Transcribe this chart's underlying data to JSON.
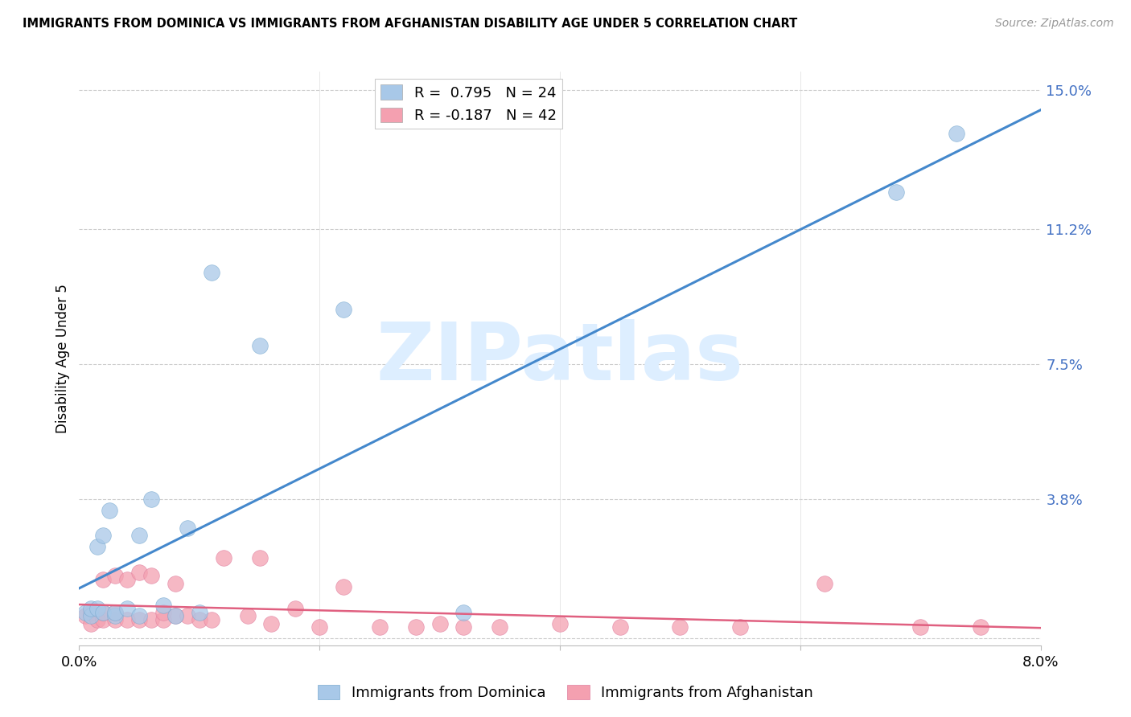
{
  "title": "IMMIGRANTS FROM DOMINICA VS IMMIGRANTS FROM AFGHANISTAN DISABILITY AGE UNDER 5 CORRELATION CHART",
  "source": "Source: ZipAtlas.com",
  "ylabel": "Disability Age Under 5",
  "xlim": [
    0.0,
    0.08
  ],
  "ylim": [
    -0.002,
    0.155
  ],
  "xtick_positions": [
    0.0,
    0.02,
    0.04,
    0.06,
    0.08
  ],
  "xtick_labels": [
    "0.0%",
    "",
    "",
    "",
    "8.0%"
  ],
  "ytick_right_vals": [
    0.0,
    0.038,
    0.075,
    0.112,
    0.15
  ],
  "ytick_right_labels": [
    "",
    "3.8%",
    "7.5%",
    "11.2%",
    "15.0%"
  ],
  "legend_entries": [
    {
      "label": "R =  0.795   N = 24",
      "color": "#a8c8e8"
    },
    {
      "label": "R = -0.187   N = 42",
      "color": "#f4a0b0"
    }
  ],
  "dominica_color": "#a8c8e8",
  "afghanistan_color": "#f4a0b0",
  "dominica_edge_color": "#7aaad0",
  "afghanistan_edge_color": "#e080a0",
  "dominica_line_color": "#4488cc",
  "afghanistan_line_color": "#e06080",
  "watermark_text": "ZIPatlas",
  "watermark_color": "#ddeeff",
  "dominica_x": [
    0.0005,
    0.001,
    0.001,
    0.0015,
    0.0015,
    0.002,
    0.002,
    0.0025,
    0.003,
    0.003,
    0.004,
    0.005,
    0.005,
    0.006,
    0.007,
    0.008,
    0.009,
    0.01,
    0.011,
    0.015,
    0.022,
    0.032,
    0.068,
    0.073
  ],
  "dominica_y": [
    0.007,
    0.006,
    0.008,
    0.008,
    0.025,
    0.007,
    0.028,
    0.035,
    0.006,
    0.007,
    0.008,
    0.006,
    0.028,
    0.038,
    0.009,
    0.006,
    0.03,
    0.007,
    0.1,
    0.08,
    0.09,
    0.007,
    0.122,
    0.138
  ],
  "afghanistan_x": [
    0.0005,
    0.001,
    0.001,
    0.0015,
    0.002,
    0.002,
    0.002,
    0.003,
    0.003,
    0.003,
    0.004,
    0.004,
    0.005,
    0.005,
    0.006,
    0.006,
    0.007,
    0.007,
    0.008,
    0.008,
    0.009,
    0.01,
    0.011,
    0.012,
    0.014,
    0.015,
    0.016,
    0.018,
    0.02,
    0.022,
    0.025,
    0.028,
    0.03,
    0.032,
    0.035,
    0.04,
    0.045,
    0.05,
    0.055,
    0.062,
    0.07,
    0.075
  ],
  "afghanistan_y": [
    0.006,
    0.004,
    0.007,
    0.005,
    0.005,
    0.007,
    0.016,
    0.005,
    0.007,
    0.017,
    0.005,
    0.016,
    0.005,
    0.018,
    0.005,
    0.017,
    0.005,
    0.007,
    0.006,
    0.015,
    0.006,
    0.005,
    0.005,
    0.022,
    0.006,
    0.022,
    0.004,
    0.008,
    0.003,
    0.014,
    0.003,
    0.003,
    0.004,
    0.003,
    0.003,
    0.004,
    0.003,
    0.003,
    0.003,
    0.015,
    0.003,
    0.003
  ],
  "dominica_trend": [
    0.0,
    0.08,
    -0.001,
    0.15
  ],
  "afghanistan_trend": [
    0.0,
    0.08,
    0.009,
    0.006
  ]
}
